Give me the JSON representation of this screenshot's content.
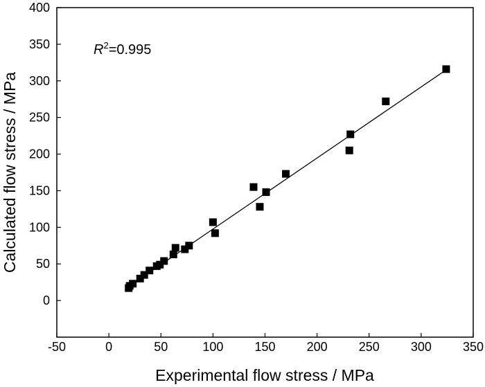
{
  "chart_data": {
    "type": "scatter",
    "title": "",
    "xlabel": "Experimental flow stress / MPa",
    "ylabel": "Calculated flow stress / MPa",
    "xlim": [
      -50,
      350
    ],
    "ylim": [
      -50,
      400
    ],
    "xticks": [
      "-50",
      "0",
      "50",
      "100",
      "150",
      "200",
      "250",
      "300",
      "350"
    ],
    "yticks": [
      "0",
      "50",
      "100",
      "150",
      "200",
      "250",
      "300",
      "350",
      "400"
    ],
    "grid": false,
    "legend": "none",
    "annotation": {
      "prefix": "R",
      "sup": "2",
      "suffix": "=0.995"
    },
    "marker_color": "#000000",
    "points": [
      {
        "x": 19,
        "y": 17
      },
      {
        "x": 20,
        "y": 20
      },
      {
        "x": 23,
        "y": 23
      },
      {
        "x": 30,
        "y": 30
      },
      {
        "x": 34,
        "y": 35
      },
      {
        "x": 39,
        "y": 41
      },
      {
        "x": 46,
        "y": 47
      },
      {
        "x": 49,
        "y": 49
      },
      {
        "x": 53,
        "y": 54
      },
      {
        "x": 62,
        "y": 63
      },
      {
        "x": 64,
        "y": 72
      },
      {
        "x": 73,
        "y": 70
      },
      {
        "x": 77,
        "y": 75
      },
      {
        "x": 100,
        "y": 107
      },
      {
        "x": 102,
        "y": 92
      },
      {
        "x": 139,
        "y": 155
      },
      {
        "x": 145,
        "y": 128
      },
      {
        "x": 151,
        "y": 148
      },
      {
        "x": 170,
        "y": 173
      },
      {
        "x": 231,
        "y": 205
      },
      {
        "x": 232,
        "y": 227
      },
      {
        "x": 266,
        "y": 272
      },
      {
        "x": 324,
        "y": 316
      }
    ],
    "fit_line": {
      "x": [
        18,
        324
      ],
      "y": [
        18,
        315
      ]
    }
  }
}
